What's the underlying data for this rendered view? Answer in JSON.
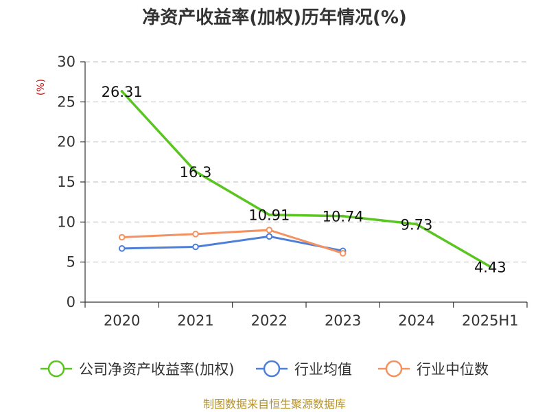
{
  "title": "净资产收益率(加权)历年情况(%)",
  "source": "制图数据来自恒生聚源数据库",
  "chart_data": {
    "type": "line",
    "unit_label": "(%)",
    "categories": [
      "2020",
      "2021",
      "2022",
      "2023",
      "2024",
      "2025H1"
    ],
    "ylim": [
      0,
      30
    ],
    "yticks": [
      0,
      5,
      10,
      15,
      20,
      25,
      30
    ],
    "grid": true,
    "legend_position": "bottom",
    "series": [
      {
        "name": "公司净资产收益率(加权)",
        "color": "#5ac520",
        "values": [
          26.31,
          16.3,
          10.91,
          10.74,
          9.73,
          4.43
        ],
        "labels": [
          "26.31",
          "16.3",
          "10.91",
          "10.74",
          "9.73",
          "4.43"
        ],
        "show_markers": false
      },
      {
        "name": "行业均值",
        "color": "#4e7fd8",
        "values": [
          6.7,
          6.9,
          8.2,
          6.4,
          null,
          null
        ],
        "show_markers": true
      },
      {
        "name": "行业中位数",
        "color": "#f39260",
        "values": [
          8.1,
          8.5,
          9.0,
          6.1,
          null,
          null
        ],
        "show_markers": true
      }
    ]
  }
}
